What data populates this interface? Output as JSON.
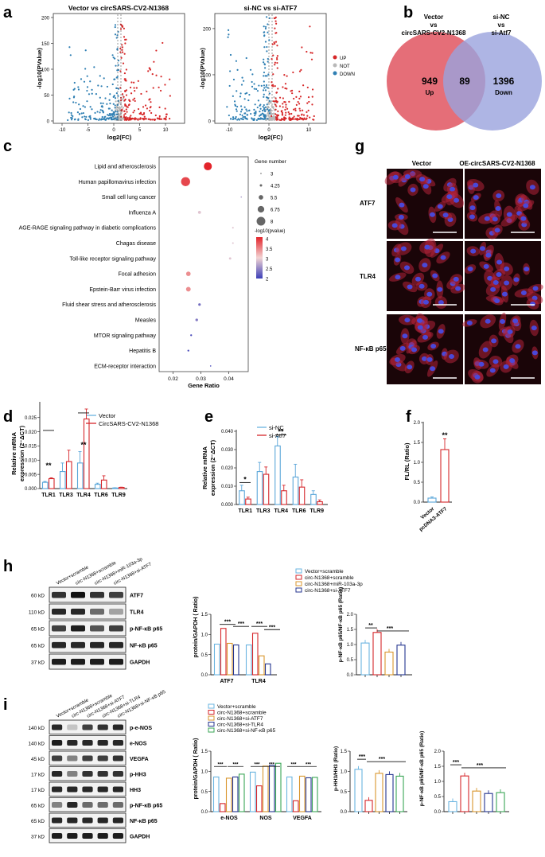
{
  "panels": {
    "a": "a",
    "b": "b",
    "c": "c",
    "d": "d",
    "e": "e",
    "f": "f",
    "g": "g",
    "h": "h",
    "i": "i"
  },
  "colors": {
    "up": "#d62728",
    "not": "#b8b8b8",
    "down": "#2e7fb3",
    "venn_left": "#e05560",
    "venn_right": "#9aa3dd",
    "vector": "#5aa6d9",
    "treat": "#d6262b",
    "h1": "#6ab4e0",
    "h2": "#d6262b",
    "h3": "#d9962d",
    "h4": "#24348f",
    "i1": "#6ab4e0",
    "i2": "#d6262b",
    "i3": "#d9962d",
    "i4": "#24348f",
    "i5": "#3aa555"
  },
  "panel_a": {
    "volcano1_title": "Vector vs circSARS-CV2-N1368",
    "volcano2_title": "si-NC vs si-ATF7",
    "ylabel": "-log10(PValue)",
    "xlabel": "log2(FC)",
    "v1_yticks": [
      "0",
      "50",
      "100",
      "150",
      "200"
    ],
    "v1_xticks": [
      "-10",
      "-5",
      "0",
      "5",
      "10"
    ],
    "v2_yticks": [
      "0",
      "100",
      "200"
    ],
    "v2_xticks": [
      "-10",
      "0",
      "10"
    ],
    "legend": [
      "UP",
      "NOT",
      "DOWN"
    ]
  },
  "panel_b": {
    "left_label_lines": [
      "Vector",
      "vs",
      "circSARS-CV2-N1368"
    ],
    "right_label_lines": [
      "si-NC",
      "vs",
      "si-Atf7"
    ],
    "left_count": "949",
    "left_dir": "Up",
    "overlap": "89",
    "right_count": "1396",
    "right_dir": "Down"
  },
  "chart_data": [
    {
      "type": "scatter",
      "panel": "c",
      "xlabel": "Gene Ratio",
      "xticks": [
        "0.02",
        "0.03",
        "0.04"
      ],
      "xlim": [
        0.015,
        0.047
      ],
      "categories": [
        "Lipid and atherosclerosis",
        "Human papillomavirus infection",
        "Small cell lung cancer",
        "Influenza A",
        "AGE-RAGE signaling pathway in diabetic complications",
        "Chagas disease",
        "Toll-like receptor signaling pathway",
        "Focal adhesion",
        "Epstein-Barr virus infection",
        "Fluid shear stress and atherosclerosis",
        "Measles",
        "MTOR signaling pathway",
        "Hepatitis B",
        "ECM-receptor interaction"
      ],
      "gene_ratio": [
        0.0325,
        0.0245,
        0.0445,
        0.0295,
        0.0415,
        0.0415,
        0.0405,
        0.0255,
        0.0255,
        0.0295,
        0.0285,
        0.0265,
        0.0255,
        0.0335
      ],
      "gene_number": [
        7.6,
        8.2,
        3,
        4.6,
        3.8,
        3.8,
        4.2,
        5.5,
        5.6,
        4.3,
        4.4,
        3.9,
        3.9,
        3
      ],
      "neglog10p": [
        4.0,
        3.8,
        2.6,
        2.9,
        2.9,
        2.9,
        2.9,
        3.4,
        3.4,
        2.3,
        2.4,
        2.1,
        2.1,
        2.0
      ],
      "size_legend_title": "Gene number",
      "size_legend": [
        "3",
        "4.25",
        "5.5",
        "6.75",
        "8"
      ],
      "color_legend_title": "-log10(pvalue)",
      "color_legend": [
        "4",
        "3.5",
        "3",
        "2.5",
        "2"
      ]
    },
    {
      "type": "bar",
      "panel": "d",
      "ylabel": "Relative mRNA expression (2^-ΔCT)",
      "categories": [
        "TLR1",
        "TLR3",
        "TLR4",
        "TLR6",
        "TLR9"
      ],
      "yticks": [
        "0.000",
        "0.005",
        "0.010",
        "0.015",
        "0.020",
        "0.025"
      ],
      "series": [
        {
          "name": "Vector",
          "values": [
            0.0022,
            0.006,
            0.009,
            0.0015,
            0.0002
          ],
          "err": [
            0.0003,
            0.003,
            0.004,
            0.0004,
            0.0001
          ]
        },
        {
          "name": "CircSARS-CV2-N1368",
          "values": [
            0.0035,
            0.0095,
            0.0245,
            0.003,
            0.0004
          ],
          "err": [
            0.0003,
            0.004,
            0.0035,
            0.0015,
            0.0001
          ]
        }
      ],
      "sig": [
        {
          "cat": 0,
          "text": "**"
        },
        {
          "cat": 2,
          "text": "**"
        }
      ]
    },
    {
      "type": "bar",
      "panel": "e",
      "ylabel": "Relative mRNA expression (2^-ΔCT)",
      "categories": [
        "TLR1",
        "TLR3",
        "TLR4",
        "TLR6",
        "TLR9"
      ],
      "yticks": [
        "0.000",
        "0.010",
        "0.020",
        "0.030",
        "0.040"
      ],
      "ylim": [
        0,
        0.04
      ],
      "series": [
        {
          "name": "si-NC",
          "values": [
            0.0075,
            0.018,
            0.032,
            0.015,
            0.0055
          ],
          "err": [
            0.003,
            0.005,
            0.005,
            0.007,
            0.002
          ]
        },
        {
          "name": "si-Atf7",
          "values": [
            0.003,
            0.0165,
            0.0075,
            0.0095,
            0.0015
          ],
          "err": [
            0.001,
            0.004,
            0.003,
            0.004,
            0.001
          ]
        }
      ],
      "sig": [
        {
          "cat": 0,
          "text": "*"
        },
        {
          "cat": 2,
          "text": "**"
        }
      ]
    },
    {
      "type": "bar",
      "panel": "f",
      "ylabel": "FL/RL (Ratio)",
      "categories": [
        "Vector",
        "pcDNA3-ATF7"
      ],
      "yticks": [
        "0.0",
        "0.5",
        "1.0",
        "1.5",
        "2.0"
      ],
      "ylim": [
        0,
        2.0
      ],
      "values": [
        0.1,
        1.32
      ],
      "err": [
        0.03,
        0.27
      ],
      "sig": "**"
    },
    {
      "type": "bar",
      "panel": "h-left",
      "ylabel": "protein/GAPDH ( Ratio)",
      "categories": [
        "ATF7",
        "TLR4"
      ],
      "yticks": [
        "0.0",
        "0.5",
        "1.0",
        "1.5"
      ],
      "ylim": [
        0,
        1.5
      ],
      "series": [
        {
          "name": "Vector+scramble",
          "values": [
            0.76,
            0.74
          ]
        },
        {
          "name": "circ-N1368+scramble",
          "values": [
            1.15,
            1.03
          ]
        },
        {
          "name": "circ-N1368+miR-103a-3p",
          "values": [
            0.78,
            0.47
          ]
        },
        {
          "name": "circ-N1368+si-ATF7",
          "values": [
            0.74,
            0.27
          ]
        }
      ],
      "sig": [
        "***",
        "***",
        "***",
        "***"
      ]
    },
    {
      "type": "bar",
      "panel": "h-right",
      "ylabel": "p-NF-κB p65/NF-κB p65 (Ratio)",
      "yticks": [
        "0.0",
        "0.5",
        "1.0",
        "1.5",
        "2.0"
      ],
      "ylim": [
        0,
        2.0
      ],
      "values": [
        1.05,
        1.4,
        0.75,
        0.98
      ],
      "sig": [
        "**",
        "***"
      ]
    },
    {
      "type": "bar",
      "panel": "i-left",
      "ylabel": "protein/GAPDH ( Ratio)",
      "categories": [
        "e-NOS",
        "NOS",
        "VEGFA"
      ],
      "yticks": [
        "0.0",
        "0.5",
        "1.0",
        "1.5"
      ],
      "ylim": [
        0,
        1.5
      ],
      "series": [
        {
          "name": "Vector+scramble",
          "values": [
            0.86,
            0.98,
            0.86
          ]
        },
        {
          "name": "circ-N1368+scramble",
          "values": [
            0.2,
            0.64,
            0.27
          ]
        },
        {
          "name": "circ-N1368+si-ATF7",
          "values": [
            0.83,
            1.13,
            0.88
          ]
        },
        {
          "name": "circ-N1368+si-TLR4",
          "values": [
            0.86,
            1.15,
            0.84
          ]
        },
        {
          "name": "circ-N1368+si-NF-κB p65",
          "values": [
            0.93,
            1.2,
            0.85
          ]
        }
      ],
      "sig": [
        "***",
        "***",
        "***",
        "***",
        "***",
        "***"
      ]
    },
    {
      "type": "bar",
      "panel": "i-mid",
      "ylabel": "p-HH3/HH3 (Ratio)",
      "yticks": [
        "0.0",
        "0.5",
        "1.0",
        "1.5"
      ],
      "ylim": [
        0,
        1.5
      ],
      "values": [
        1.05,
        0.28,
        0.95,
        0.92,
        0.88
      ],
      "sig": [
        "***",
        "***"
      ]
    },
    {
      "type": "bar",
      "panel": "i-right",
      "ylabel": "p-NF-κB p65/NF-κB p65 (Ratio)",
      "yticks": [
        "0.0",
        "0.5",
        "1.0",
        "1.5",
        "2.0"
      ],
      "ylim": [
        0,
        2.0
      ],
      "values": [
        0.33,
        1.18,
        0.68,
        0.6,
        0.63
      ],
      "sig": [
        "***",
        "***"
      ]
    }
  ],
  "panel_g": {
    "col1": "Vector",
    "col2": "OE-circSARS-CV2-N1368",
    "rows": [
      "ATF7",
      "TLR4",
      "NF-κB p65"
    ]
  },
  "panel_h": {
    "lanes": [
      "Vector+scramble",
      "circ-N1368+scramble",
      "circ-N1368+miR-103a-3p",
      "circ-N1368+si-ATF7"
    ],
    "bands": [
      {
        "kd": "60 kD",
        "name": "ATF7"
      },
      {
        "kd": "110 kD",
        "name": "TLR4"
      },
      {
        "kd": "65 kD",
        "name": "p-NF-κB p65"
      },
      {
        "kd": "65 kD",
        "name": "NF-κB p65"
      },
      {
        "kd": "37 kD",
        "name": "GAPDH"
      }
    ]
  },
  "panel_i": {
    "lanes": [
      "Vector+scramble",
      "circ-N1368+scramble",
      "circ-N1368+si-ATF7",
      "circ-N1368+si-TLR4",
      "circ-N1368+si-NF-κB p65"
    ],
    "bands": [
      {
        "kd": "140 kD",
        "name": "p-e-NOS"
      },
      {
        "kd": "140 kD",
        "name": "e-NOS"
      },
      {
        "kd": "45 kD",
        "name": "VEGFA"
      },
      {
        "kd": "17 kD",
        "name": "p-HH3"
      },
      {
        "kd": "17 kD",
        "name": "HH3"
      },
      {
        "kd": "65 kD",
        "name": "p-NF-κB p65"
      },
      {
        "kd": "65 kD",
        "name": "NF-κB p65"
      },
      {
        "kd": "37 kD",
        "name": "GAPDH"
      }
    ]
  }
}
